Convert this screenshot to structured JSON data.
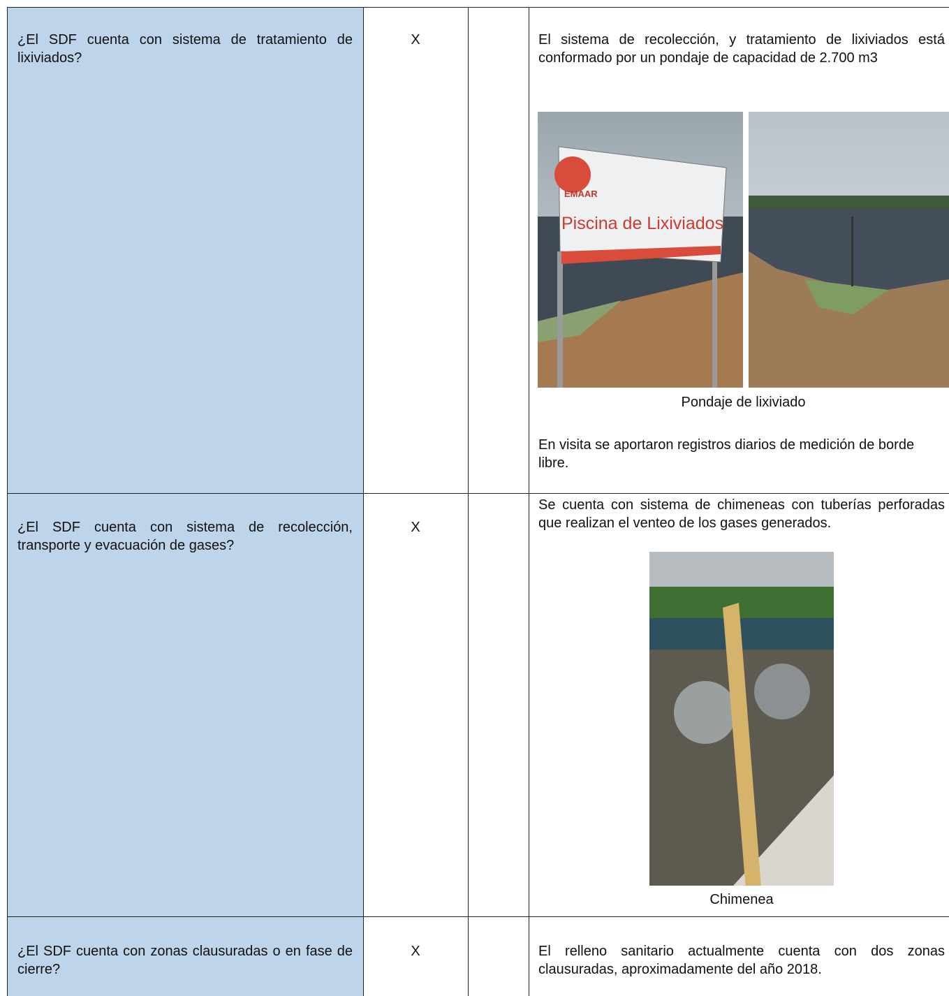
{
  "table": {
    "rows": [
      {
        "question": "¿El SDF cuenta con sistema de tratamiento de lixiviados?",
        "mark": "X",
        "observation": "El sistema de recolección, y tratamiento de lixiviados está conformado por un pondaje de capacidad de 2.700 m3",
        "figure": {
          "sign_logo": "EMAAR",
          "sign_text": "Piscina de Lixiviados",
          "caption": "Pondaje de lixiviado"
        },
        "note": "En visita se aportaron registros diarios de medición de borde libre."
      },
      {
        "question": "¿El SDF cuenta con sistema de recolección, transporte y evacuación de gases?",
        "mark": "X",
        "observation": "Se cuenta con sistema de chimeneas con tuberías perforadas que realizan el venteo de los gases generados.",
        "figure": {
          "caption": "Chimenea"
        }
      },
      {
        "question": "¿El SDF cuenta con zonas clausuradas o en fase de cierre?",
        "mark": "X",
        "observation": "El relleno sanitario actualmente cuenta con dos zonas clausuradas, aproximadamente del año 2018."
      }
    ]
  }
}
